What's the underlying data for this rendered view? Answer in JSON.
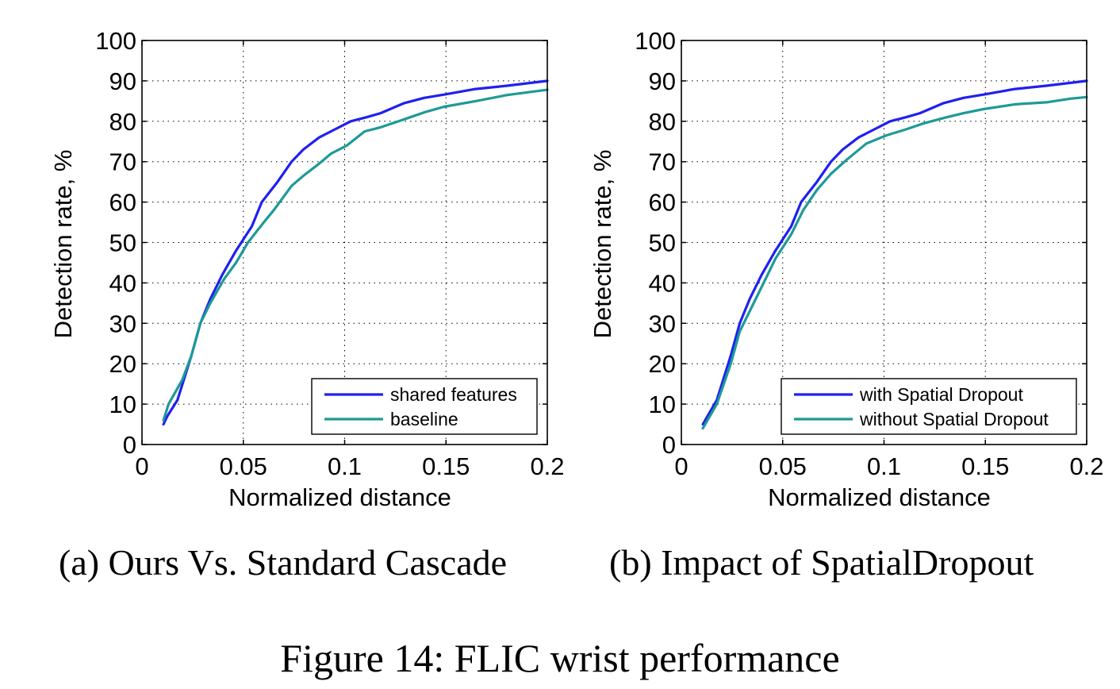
{
  "figure_caption": "Figure 14: FLIC wrist performance",
  "chart_data": [
    {
      "type": "line",
      "subcaption": "(a) Ours Vs. Standard Cascade",
      "xlabel": "Normalized distance",
      "ylabel": "Detection rate, %",
      "xlim": [
        0,
        0.2
      ],
      "ylim": [
        0,
        100
      ],
      "xticks": [
        "0",
        "0.05",
        "0.1",
        "0.15",
        "0.2"
      ],
      "xtick_values": [
        0,
        0.05,
        0.1,
        0.15,
        0.2
      ],
      "yticks": [
        "0",
        "10",
        "20",
        "30",
        "40",
        "50",
        "60",
        "70",
        "80",
        "90",
        "100"
      ],
      "ytick_values": [
        0,
        10,
        20,
        30,
        40,
        50,
        60,
        70,
        80,
        90,
        100
      ],
      "grid": true,
      "legend_position": "bottom-right",
      "series": [
        {
          "name": "shared features",
          "color": "#2020f0",
          "x": [
            0.0106,
            0.0125,
            0.0175,
            0.0244,
            0.0288,
            0.0337,
            0.0396,
            0.0464,
            0.0542,
            0.0591,
            0.0669,
            0.0738,
            0.0796,
            0.0874,
            0.0952,
            0.103,
            0.1108,
            0.1177,
            0.1294,
            0.1392,
            0.149,
            0.1646,
            0.1802,
            0.2
          ],
          "y": [
            5,
            7,
            11,
            22,
            30,
            36,
            42,
            48,
            54,
            60,
            65,
            70,
            73,
            76,
            78,
            80,
            81,
            82,
            84.5,
            85.8,
            86.6,
            88,
            88.8,
            90
          ]
        },
        {
          "name": "baseline",
          "color": "#1e9a96",
          "x": [
            0.0106,
            0.0131,
            0.0199,
            0.0244,
            0.0288,
            0.0337,
            0.0406,
            0.0464,
            0.0523,
            0.0601,
            0.065,
            0.0738,
            0.0796,
            0.0874,
            0.0933,
            0.1011,
            0.1099,
            0.1177,
            0.1294,
            0.1392,
            0.149,
            0.1646,
            0.1802,
            0.2
          ],
          "y": [
            6,
            10,
            16,
            22,
            30,
            35,
            41,
            45,
            50,
            55,
            58,
            64,
            66.5,
            69.5,
            72,
            74,
            77.5,
            78.5,
            80.5,
            82.2,
            83.6,
            85,
            86.5,
            87.8
          ]
        }
      ]
    },
    {
      "type": "line",
      "subcaption": "(b) Impact of SpatialDropout",
      "xlabel": "Normalized distance",
      "ylabel": "Detection rate, %",
      "xlim": [
        0,
        0.2
      ],
      "ylim": [
        0,
        100
      ],
      "xticks": [
        "0",
        "0.05",
        "0.1",
        "0.15",
        "0.2"
      ],
      "xtick_values": [
        0,
        0.05,
        0.1,
        0.15,
        0.2
      ],
      "yticks": [
        "0",
        "10",
        "20",
        "30",
        "40",
        "50",
        "60",
        "70",
        "80",
        "90",
        "100"
      ],
      "ytick_values": [
        0,
        10,
        20,
        30,
        40,
        50,
        60,
        70,
        80,
        90,
        100
      ],
      "grid": true,
      "legend_position": "bottom-right",
      "series": [
        {
          "name": "with Spatial Dropout",
          "color": "#2020f0",
          "x": [
            0.0106,
            0.0175,
            0.0244,
            0.0288,
            0.0337,
            0.0396,
            0.0464,
            0.0542,
            0.0591,
            0.0669,
            0.0738,
            0.0796,
            0.0874,
            0.0952,
            0.103,
            0.1108,
            0.1177,
            0.1294,
            0.1392,
            0.149,
            0.1646,
            0.1802,
            0.2
          ],
          "y": [
            5,
            11,
            22,
            30,
            36,
            42,
            48,
            54,
            60,
            65,
            70,
            73,
            76,
            78,
            80,
            81,
            82,
            84.5,
            85.8,
            86.6,
            88,
            88.8,
            90
          ]
        },
        {
          "name": "without Spatial Dropout",
          "color": "#1e9a96",
          "x": [
            0.0106,
            0.0175,
            0.0244,
            0.0288,
            0.0347,
            0.0406,
            0.0464,
            0.0542,
            0.0601,
            0.0669,
            0.0738,
            0.0816,
            0.0913,
            0.1011,
            0.1108,
            0.1197,
            0.1294,
            0.1392,
            0.149,
            0.1646,
            0.1802,
            0.1919,
            0.2
          ],
          "y": [
            4,
            10,
            20,
            28,
            34,
            40,
            46,
            52,
            58,
            63,
            67,
            70.5,
            74.5,
            76.5,
            78,
            79.5,
            80.8,
            82,
            83,
            84.2,
            84.7,
            85.6,
            86
          ]
        }
      ]
    }
  ]
}
